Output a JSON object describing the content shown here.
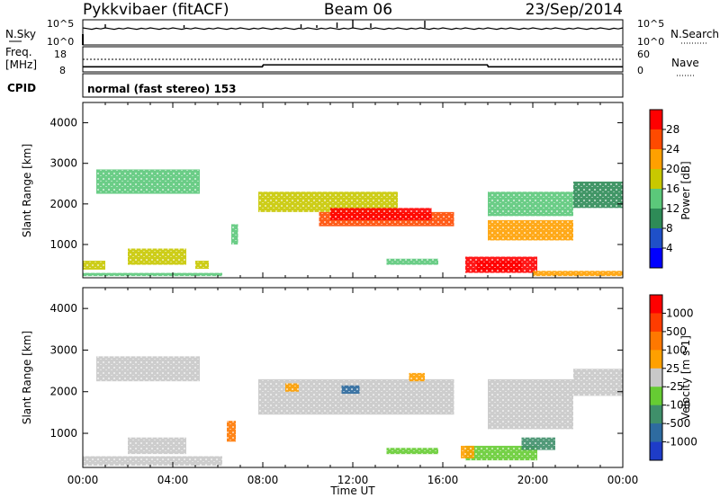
{
  "header": {
    "station": "Pykkvibaer (fitACF)",
    "beam": "Beam 06",
    "date": "23/Sep/2014"
  },
  "strip_panel": {
    "left_label": "N.Sky",
    "right_label": "N.Search",
    "left_ticks": [
      "10^5",
      "10^0"
    ],
    "right_ticks": [
      "10^5",
      "10^0"
    ]
  },
  "freq_panel": {
    "left_label_1": "Freq.",
    "left_label_2": "[MHz]",
    "right_label": "Nave",
    "left_ticks": [
      "18",
      "8"
    ],
    "right_ticks": [
      "60",
      "0"
    ],
    "segments": [
      {
        "t_start": 0,
        "t_end": 8,
        "freq": 10.6
      },
      {
        "t_start": 8,
        "t_end": 18,
        "freq": 12.2
      },
      {
        "t_start": 18,
        "t_end": 24,
        "freq": 10.6
      }
    ]
  },
  "cpid": {
    "label": "CPID",
    "text": "normal (fast stereo) 153"
  },
  "chart_data": [
    {
      "type": "heatmap",
      "name": "power",
      "ylabel": "Slant Range [km]",
      "xlabel": "",
      "xlim": [
        0,
        24
      ],
      "ylim": [
        180,
        4500
      ],
      "yticks": [
        1000,
        2000,
        3000,
        4000
      ],
      "colorbar": {
        "label": "Power [dB]",
        "ticks": [
          "28",
          "24",
          "20",
          "16",
          "12",
          "8",
          "4"
        ],
        "colors": [
          "#0000ff",
          "#1f50c8",
          "#2e8b57",
          "#5bc87a",
          "#c8c800",
          "#ffa000",
          "#ff4a00",
          "#ff0000"
        ]
      },
      "bands": [
        {
          "t0": 0.6,
          "t1": 5.2,
          "r0": 2250,
          "r1": 2850,
          "level": 3
        },
        {
          "t0": 2.0,
          "t1": 4.6,
          "r0": 500,
          "r1": 900,
          "level": 4
        },
        {
          "t0": 0.0,
          "t1": 1.0,
          "r0": 380,
          "r1": 600,
          "level": 4
        },
        {
          "t0": 0.0,
          "t1": 6.2,
          "r0": 220,
          "r1": 300,
          "level": 3
        },
        {
          "t0": 5.0,
          "t1": 5.6,
          "r0": 400,
          "r1": 600,
          "level": 4
        },
        {
          "t0": 6.6,
          "t1": 6.9,
          "r0": 1000,
          "r1": 1500,
          "level": 3
        },
        {
          "t0": 7.8,
          "t1": 14.0,
          "r0": 1800,
          "r1": 2300,
          "level": 4
        },
        {
          "t0": 10.5,
          "t1": 16.5,
          "r0": 1450,
          "r1": 1800,
          "level": 6
        },
        {
          "t0": 11.0,
          "t1": 15.5,
          "r0": 1600,
          "r1": 1900,
          "level": 7
        },
        {
          "t0": 13.5,
          "t1": 15.8,
          "r0": 500,
          "r1": 650,
          "level": 3
        },
        {
          "t0": 17.0,
          "t1": 20.2,
          "r0": 300,
          "r1": 700,
          "level": 7
        },
        {
          "t0": 17.5,
          "t1": 19.5,
          "r0": 350,
          "r1": 600,
          "level": 8
        },
        {
          "t0": 18.0,
          "t1": 21.8,
          "r0": 1100,
          "r1": 1600,
          "level": 5
        },
        {
          "t0": 18.0,
          "t1": 21.8,
          "r0": 1700,
          "r1": 2300,
          "level": 3
        },
        {
          "t0": 21.8,
          "t1": 24.0,
          "r0": 1900,
          "r1": 2550,
          "level": 2
        },
        {
          "t0": 20.0,
          "t1": 24.0,
          "r0": 220,
          "r1": 350,
          "level": 5
        }
      ]
    },
    {
      "type": "heatmap",
      "name": "velocity",
      "ylabel": "Slant Range [km]",
      "xlabel": "Time UT",
      "xlim": [
        0,
        24
      ],
      "ylim": [
        180,
        4500
      ],
      "yticks": [
        1000,
        2000,
        3000,
        4000
      ],
      "xticks": [
        "00:00",
        "04:00",
        "08:00",
        "12:00",
        "16:00",
        "20:00",
        "00:00"
      ],
      "colorbar": {
        "label": "Velocity [m s-1]",
        "ticks": [
          "1000",
          "500",
          "100",
          "25",
          "-25",
          "-100",
          "-500",
          "-1000"
        ],
        "colors": [
          "#1e3cc8",
          "#2e6ba0",
          "#3f8f6a",
          "#66cc33",
          "#c8c8c8",
          "#ffa000",
          "#ff7800",
          "#ff3c00",
          "#ff0000"
        ]
      },
      "bands": [
        {
          "t0": 0.6,
          "t1": 5.2,
          "r0": 2250,
          "r1": 2850,
          "level": 4
        },
        {
          "t0": 2.0,
          "t1": 4.6,
          "r0": 500,
          "r1": 900,
          "level": 4
        },
        {
          "t0": 0.0,
          "t1": 6.2,
          "r0": 220,
          "r1": 450,
          "level": 4
        },
        {
          "t0": 6.4,
          "t1": 6.8,
          "r0": 800,
          "r1": 1300,
          "level": 6
        },
        {
          "t0": 7.8,
          "t1": 16.5,
          "r0": 1450,
          "r1": 2300,
          "level": 4
        },
        {
          "t0": 11.5,
          "t1": 12.3,
          "r0": 1950,
          "r1": 2150,
          "level": 1
        },
        {
          "t0": 9.0,
          "t1": 9.6,
          "r0": 2000,
          "r1": 2200,
          "level": 5
        },
        {
          "t0": 13.5,
          "t1": 15.8,
          "r0": 500,
          "r1": 650,
          "level": 3
        },
        {
          "t0": 14.5,
          "t1": 15.2,
          "r0": 2250,
          "r1": 2450,
          "level": 5
        },
        {
          "t0": 17.0,
          "t1": 20.2,
          "r0": 350,
          "r1": 700,
          "level": 3
        },
        {
          "t0": 18.0,
          "t1": 21.8,
          "r0": 1100,
          "r1": 2300,
          "level": 4
        },
        {
          "t0": 19.5,
          "t1": 21.0,
          "r0": 600,
          "r1": 900,
          "level": 2
        },
        {
          "t0": 21.8,
          "t1": 24.0,
          "r0": 1900,
          "r1": 2550,
          "level": 4
        },
        {
          "t0": 16.8,
          "t1": 17.4,
          "r0": 400,
          "r1": 700,
          "level": 5
        }
      ]
    }
  ]
}
